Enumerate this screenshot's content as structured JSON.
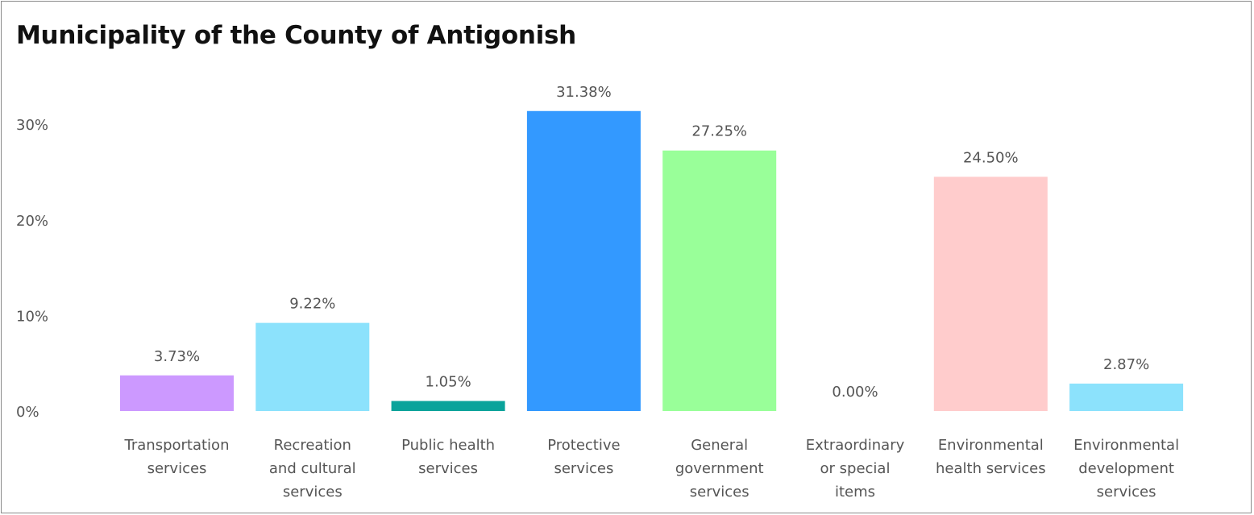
{
  "chart_data": {
    "type": "bar",
    "title": "Municipality of the County of Antigonish",
    "xlabel": "",
    "ylabel": "",
    "ylim": [
      0,
      32
    ],
    "yticks": [
      {
        "value": 0,
        "label": "0%"
      },
      {
        "value": 10,
        "label": "10%"
      },
      {
        "value": 20,
        "label": "20%"
      },
      {
        "value": 30,
        "label": "30%"
      }
    ],
    "grid": false,
    "categories": [
      [
        "Transportation",
        "services"
      ],
      [
        "Recreation",
        "and cultural",
        "services"
      ],
      [
        "Public health",
        "services"
      ],
      [
        "Protective",
        "services"
      ],
      [
        "General",
        "government",
        "services"
      ],
      [
        "Extraordinary",
        "or special",
        "items"
      ],
      [
        "Environmental",
        "health services"
      ],
      [
        "Environmental",
        "development",
        "services"
      ]
    ],
    "values": [
      3.73,
      9.22,
      1.05,
      31.38,
      27.25,
      0.0,
      24.5,
      2.87
    ],
    "data_labels": [
      "3.73%",
      "9.22%",
      "1.05%",
      "31.38%",
      "27.25%",
      "0.00%",
      "24.50%",
      "2.87%"
    ],
    "colors": [
      "#cc99ff",
      "#8ce2fc",
      "#0aa39b",
      "#3399ff",
      "#99ff99",
      "#cccccc",
      "#ffcccc",
      "#8ce2fc"
    ]
  }
}
